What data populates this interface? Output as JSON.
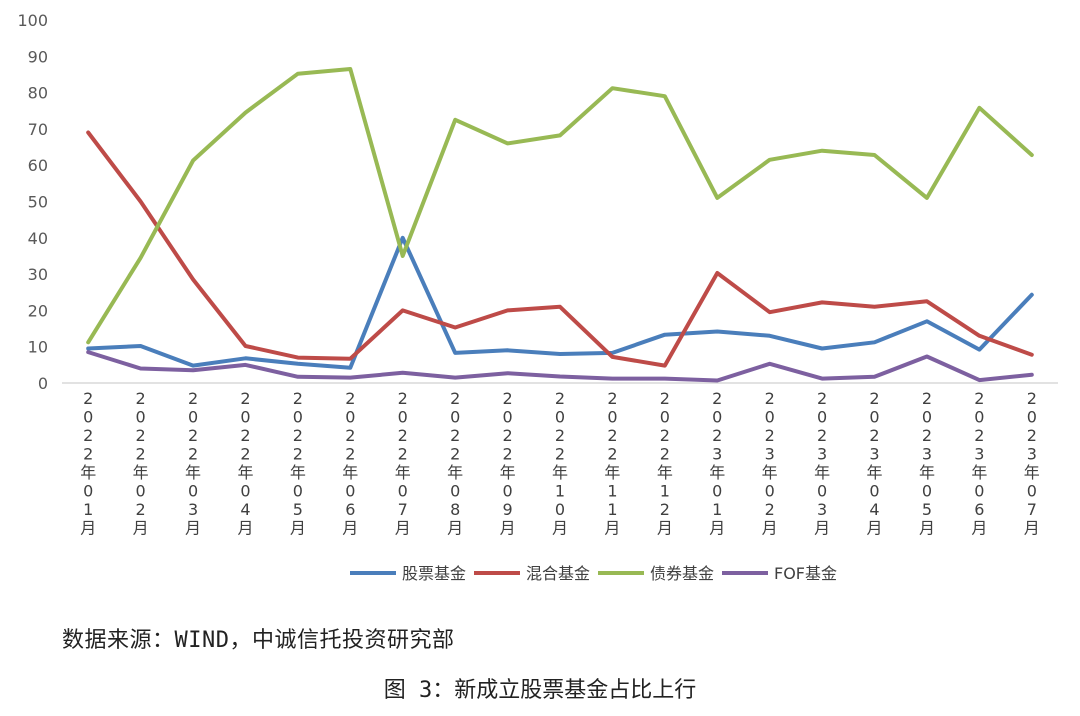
{
  "chart_data": {
    "type": "line",
    "yticks": [
      "0",
      "10",
      "20",
      "30",
      "40",
      "50",
      "60",
      "70",
      "80",
      "90",
      "100"
    ],
    "ylim": [
      0,
      100
    ],
    "grid": false,
    "legend_position": "bottom",
    "categories": [
      "2022年01月",
      "2022年02月",
      "2022年03月",
      "2022年04月",
      "2022年05月",
      "2022年06月",
      "2022年07月",
      "2022年08月",
      "2022年09月",
      "2022年10月",
      "2022年11月",
      "2022年12月",
      "2023年01月",
      "2023年02月",
      "2023年03月",
      "2023年04月",
      "2023年05月",
      "2023年06月",
      "2023年07月"
    ],
    "series": [
      {
        "name": "股票基金",
        "color": "#4a7ebb",
        "values": [
          9.5,
          10.2,
          4.8,
          6.8,
          5.3,
          4.2,
          40,
          8.3,
          9,
          8,
          8.3,
          13.3,
          14.2,
          13,
          9.5,
          11.2,
          17,
          9.2,
          24.3
        ]
      },
      {
        "name": "混合基金",
        "color": "#be4b48",
        "values": [
          69,
          50,
          28.5,
          10.2,
          7,
          6.7,
          20,
          15.3,
          20,
          21,
          7.2,
          4.8,
          30.3,
          19.5,
          22.2,
          21,
          22.5,
          13,
          7.8
        ]
      },
      {
        "name": "债券基金",
        "color": "#98b954",
        "values": [
          11.2,
          34.5,
          61.3,
          74.5,
          85.2,
          86.5,
          35,
          72.5,
          66,
          68.2,
          81.2,
          79,
          51,
          61.5,
          64,
          62.8,
          51,
          75.8,
          62.8
        ]
      },
      {
        "name": "FOF基金",
        "color": "#7d60a0",
        "values": [
          8.5,
          4,
          3.5,
          5,
          1.7,
          1.5,
          2.8,
          1.5,
          2.7,
          1.8,
          1.2,
          1.2,
          0.7,
          5.3,
          1.2,
          1.7,
          7.3,
          0.8,
          2.3
        ]
      }
    ]
  },
  "source_text": "数据来源：WIND，中诚信托投资研究部",
  "caption_text": "图 3：新成立股票基金占比上行"
}
